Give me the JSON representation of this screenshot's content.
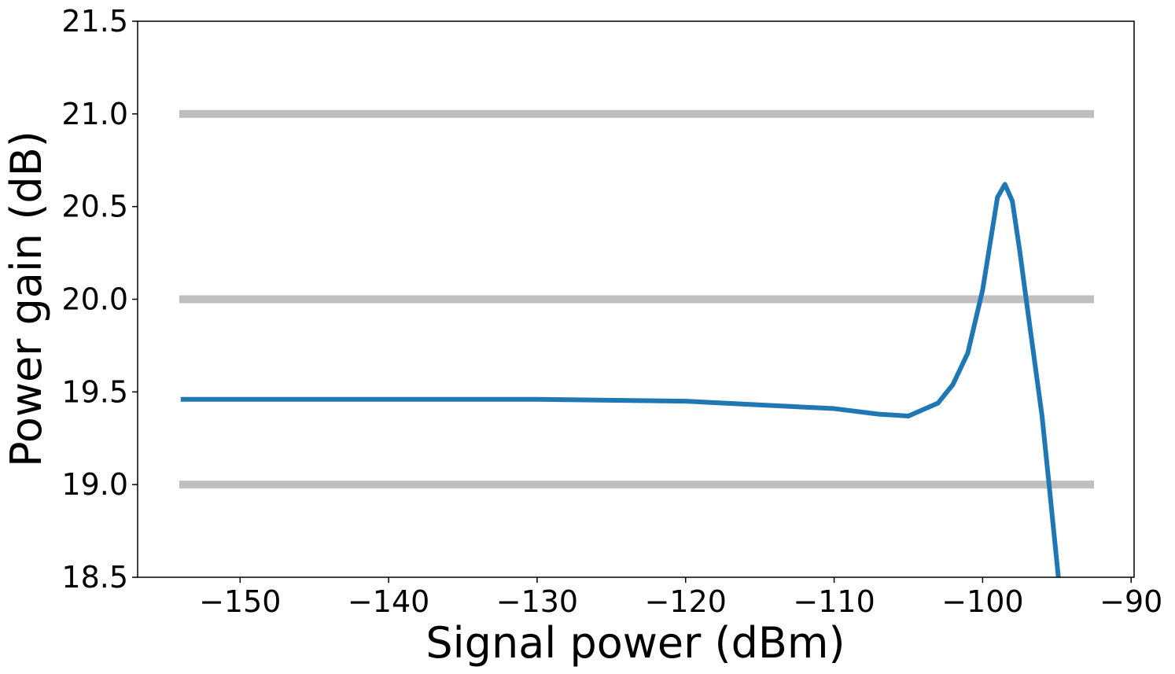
{
  "chart_data": {
    "type": "line",
    "xlabel": "Signal power (dBm)",
    "ylabel": "Power gain (dB)",
    "xlim": [
      -156.9,
      -89.8
    ],
    "ylim": [
      18.5,
      21.5
    ],
    "xticks": [
      {
        "value": -150,
        "label": "−150"
      },
      {
        "value": -140,
        "label": "−140"
      },
      {
        "value": -130,
        "label": "−130"
      },
      {
        "value": -120,
        "label": "−120"
      },
      {
        "value": -110,
        "label": "−110"
      },
      {
        "value": -100,
        "label": "−100"
      },
      {
        "value": -90,
        "label": "−90"
      }
    ],
    "yticks": [
      18.5,
      {
        "value": 19,
        "label": "19.0"
      },
      19.5,
      {
        "value": 20,
        "label": "20.0"
      },
      20.5,
      {
        "value": 21,
        "label": "21.0"
      },
      21.5
    ],
    "grid": false,
    "series": [
      {
        "color": "#bfbfbf",
        "width": 10,
        "x": [
          -154.1,
          -92.5
        ],
        "values": [
          21,
          21
        ]
      },
      {
        "color": "#bfbfbf",
        "width": 10,
        "x": [
          -154.1,
          -92.5
        ],
        "values": [
          20,
          20
        ]
      },
      {
        "color": "#bfbfbf",
        "width": 10,
        "x": [
          -154.1,
          -92.5
        ],
        "values": [
          19,
          19
        ]
      },
      {
        "color": "#1f77b4",
        "width": 6,
        "x": [
          -154,
          -140,
          -130,
          -120,
          -115,
          -110,
          -107,
          -105,
          -103,
          -102,
          -101,
          -100,
          -99.5,
          -99,
          -98.5,
          -98,
          -97.5,
          -97,
          -96,
          -95.5,
          -94.9
        ],
        "values": [
          19.46,
          19.46,
          19.46,
          19.45,
          19.43,
          19.41,
          19.38,
          19.37,
          19.44,
          19.54,
          19.71,
          20.05,
          20.3,
          20.55,
          20.62,
          20.53,
          20.26,
          19.96,
          19.37,
          18.98,
          18.5
        ]
      }
    ]
  }
}
